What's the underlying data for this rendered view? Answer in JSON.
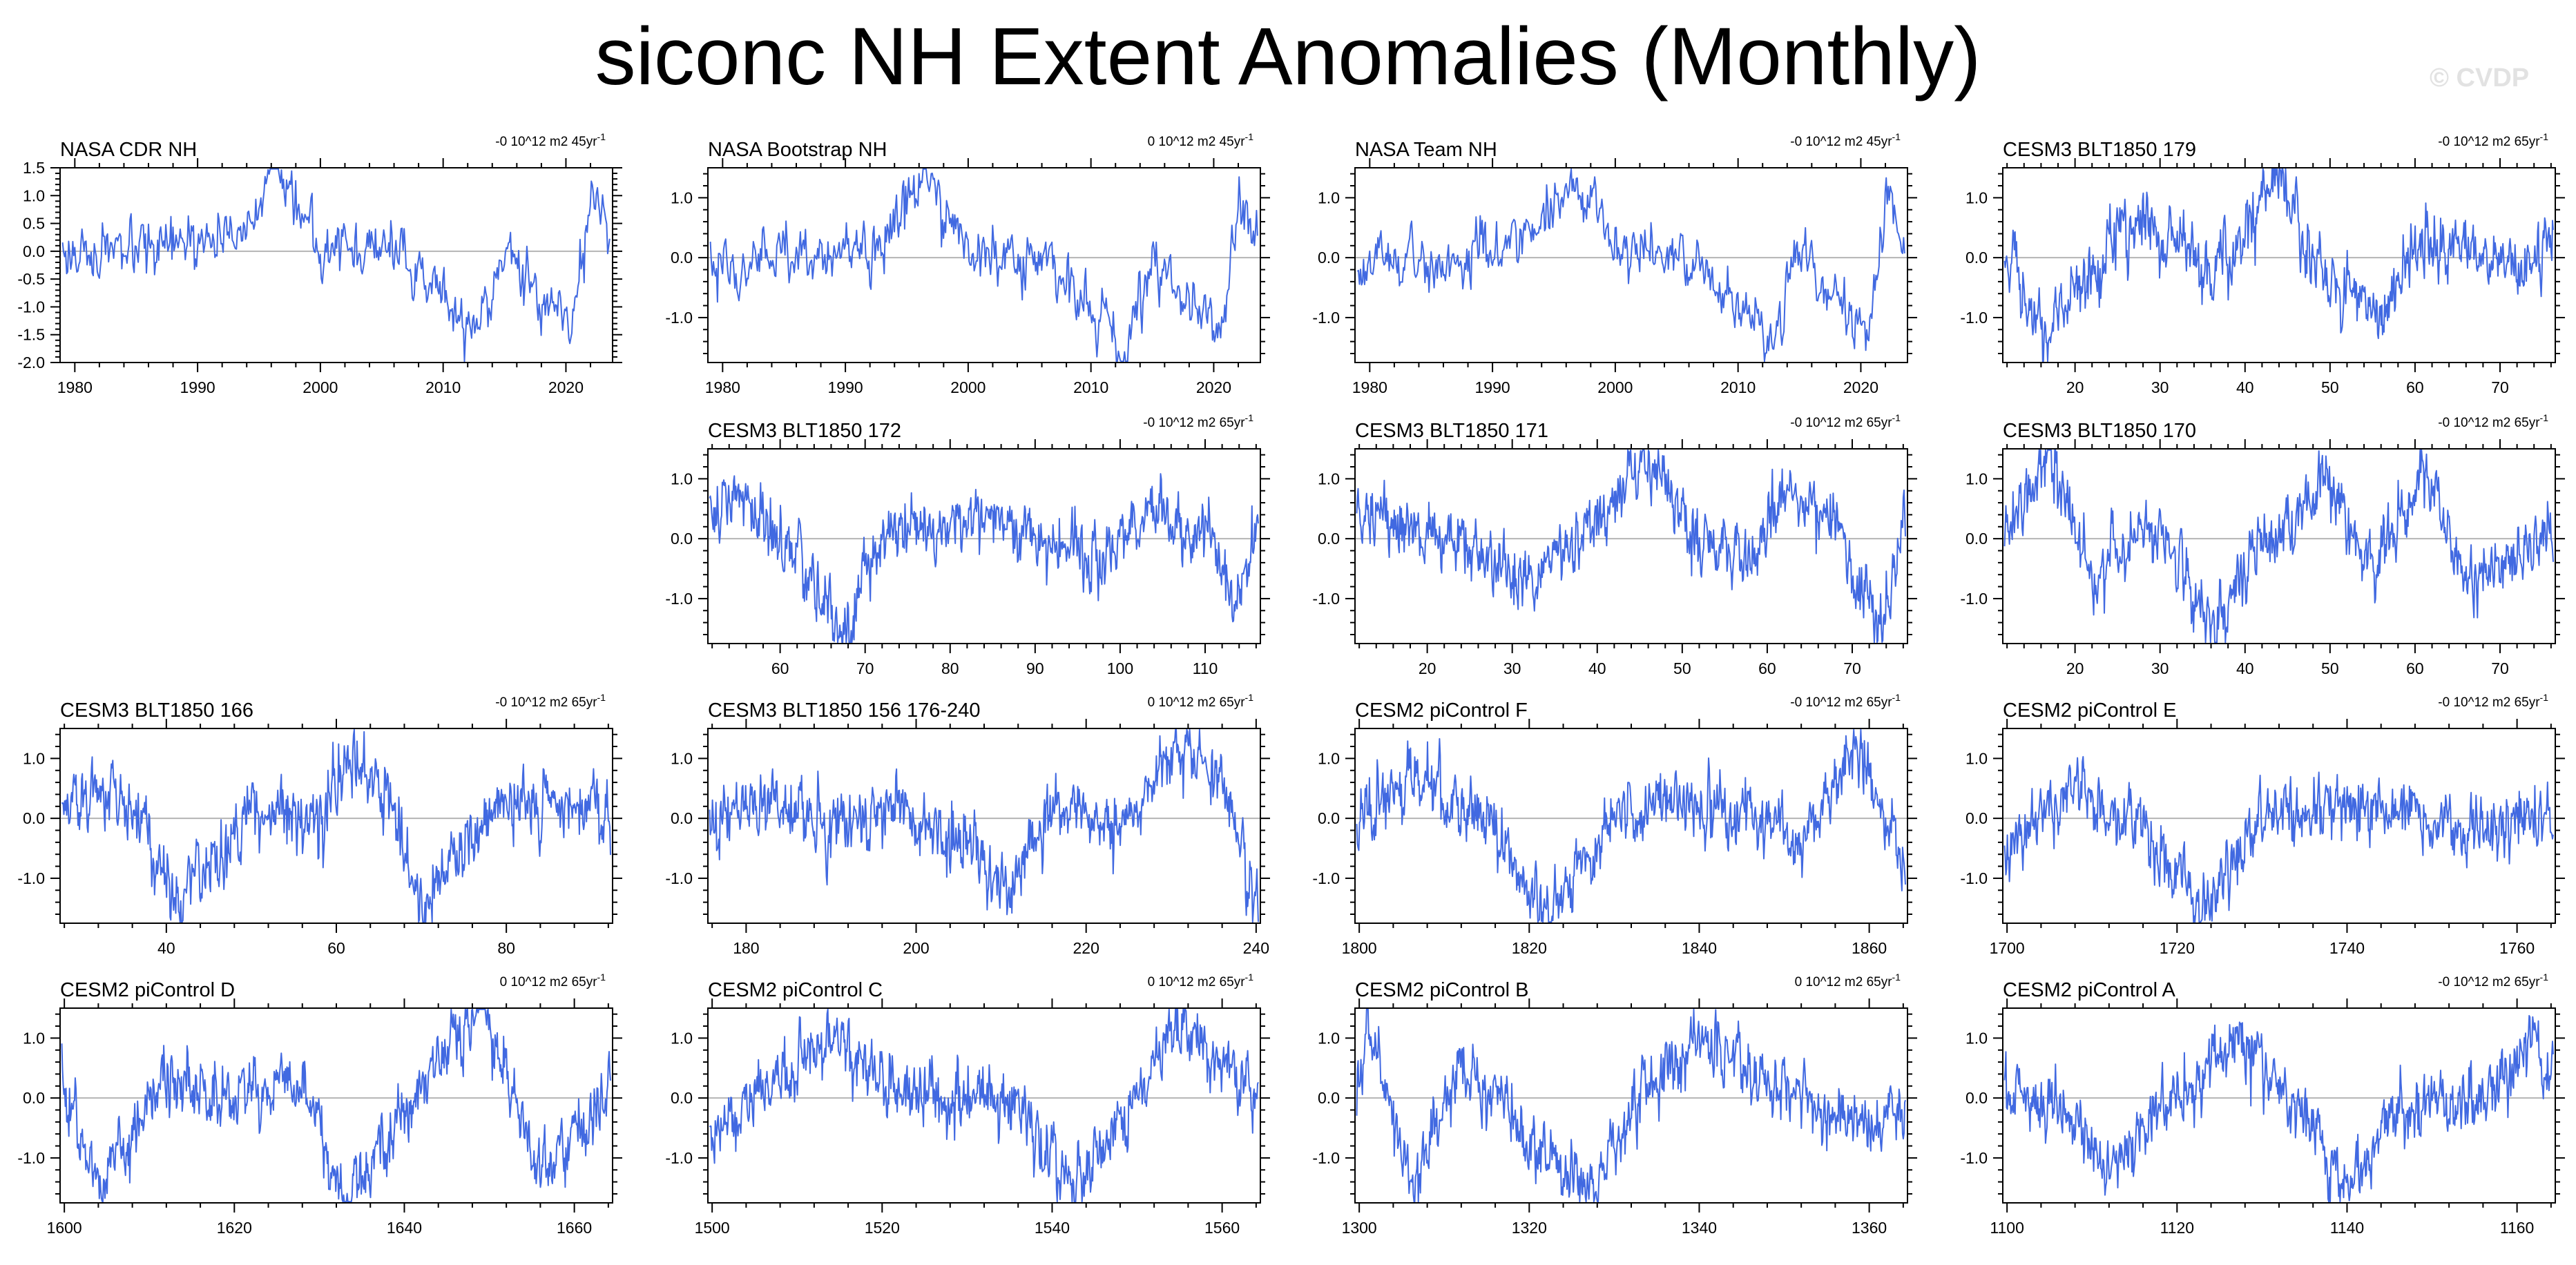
{
  "title": "siconc NH Extent Anomalies (Monthly)",
  "watermark": "© CVDP",
  "colors": {
    "line": "#4169e1",
    "zero": "#b4b4b4",
    "frame": "#000000"
  },
  "chart_data": [
    {
      "type": "line",
      "id": "nasa-cdr",
      "title": "NASA CDR NH",
      "rate": "-0 10^12 m2 45yr",
      "xlim": [
        1978.8,
        2023.8
      ],
      "ylim": [
        -2.0,
        1.5
      ],
      "xticks": [
        1980,
        1990,
        2000,
        2010,
        2020
      ],
      "yticks": [
        -2.0,
        -1.5,
        -1.0,
        -0.5,
        0.0,
        0.5,
        1.0,
        1.5
      ],
      "ytick_labels": [
        "-2.0",
        "-1.5",
        "-1.0",
        "-0.5",
        "0.0",
        "0.5",
        "1.0",
        "1.5"
      ],
      "x_step": 0.0833,
      "smoothing": 0.45,
      "noise_sd": 0.22,
      "anchors": [
        [
          1979,
          0.0
        ],
        [
          1985,
          -0.1
        ],
        [
          1993,
          0.3
        ],
        [
          1996.5,
          1.35
        ],
        [
          2000,
          0.15
        ],
        [
          2007,
          -0.1
        ],
        [
          2012.7,
          -1.55
        ],
        [
          2015,
          0.05
        ],
        [
          2020.5,
          -1.35
        ],
        [
          2022,
          0.9
        ],
        [
          2023.5,
          0.4
        ]
      ]
    },
    {
      "type": "line",
      "id": "nasa-bootstrap",
      "title": "NASA Bootstrap NH",
      "rate": "0 10^12 m2 45yr",
      "xlim": [
        1978.8,
        2023.8
      ],
      "ylim": [
        -1.75,
        1.5
      ],
      "xticks": [
        1980,
        1990,
        2000,
        2010,
        2020
      ],
      "yticks": [
        -1.0,
        0.0,
        1.0
      ],
      "ytick_labels": [
        "-1.0",
        "0.0",
        "1.0"
      ],
      "x_step": 0.0833,
      "smoothing": 0.45,
      "noise_sd": 0.22,
      "anchors": [
        [
          1979,
          0.0
        ],
        [
          1985,
          -0.1
        ],
        [
          1993,
          0.3
        ],
        [
          1996.5,
          1.35
        ],
        [
          2000,
          0.15
        ],
        [
          2007,
          -0.1
        ],
        [
          2012.7,
          -1.55
        ],
        [
          2015,
          0.05
        ],
        [
          2020.5,
          -1.35
        ],
        [
          2022,
          0.9
        ],
        [
          2023.5,
          0.4
        ]
      ]
    },
    {
      "type": "line",
      "id": "nasa-team",
      "title": "NASA Team NH",
      "rate": "-0 10^12 m2 45yr",
      "xlim": [
        1978.8,
        2023.8
      ],
      "ylim": [
        -1.75,
        1.5
      ],
      "xticks": [
        1980,
        1990,
        2000,
        2010,
        2020
      ],
      "yticks": [
        -1.0,
        0.0,
        1.0
      ],
      "ytick_labels": [
        "-1.0",
        "0.0",
        "1.0"
      ],
      "x_step": 0.0833,
      "smoothing": 0.45,
      "noise_sd": 0.22,
      "anchors": [
        [
          1979,
          0.0
        ],
        [
          1985,
          -0.1
        ],
        [
          1993,
          0.3
        ],
        [
          1996.5,
          1.35
        ],
        [
          2000,
          0.15
        ],
        [
          2007,
          -0.1
        ],
        [
          2012.7,
          -1.55
        ],
        [
          2015,
          0.05
        ],
        [
          2020.5,
          -1.35
        ],
        [
          2022,
          0.9
        ],
        [
          2023.5,
          0.4
        ]
      ]
    },
    {
      "type": "line",
      "id": "cesm3-179",
      "title": "CESM3 BLT1850 179",
      "rate": "-0 10^12 m2 65yr",
      "xlim": [
        11.5,
        76.5
      ],
      "ylim": [
        -1.75,
        1.5
      ],
      "xticks": [
        20,
        30,
        40,
        50,
        60,
        70
      ],
      "yticks": [
        -1.0,
        0.0,
        1.0
      ],
      "ytick_labels": [
        "-1.0",
        "0.0",
        "1.0"
      ],
      "x_step": 0.0833,
      "smoothing": 0.45,
      "noise_sd": 0.25,
      "anchors": [
        [
          12,
          0.1
        ],
        [
          16,
          -1.4
        ],
        [
          24,
          0.3
        ],
        [
          30,
          0.5
        ],
        [
          36,
          -0.3
        ],
        [
          44,
          1.2
        ],
        [
          50,
          -0.5
        ],
        [
          56,
          -1.1
        ],
        [
          60,
          0.3
        ],
        [
          66,
          0.2
        ],
        [
          72,
          -0.2
        ],
        [
          76,
          0.2
        ]
      ]
    },
    {
      "type": "line",
      "id": "cesm3-172",
      "title": "CESM3 BLT1850 172",
      "rate": "-0 10^12 m2 65yr",
      "xlim": [
        51.5,
        116.5
      ],
      "ylim": [
        -1.75,
        1.5
      ],
      "xticks": [
        60,
        70,
        80,
        90,
        100,
        110
      ],
      "yticks": [
        -1.0,
        0.0,
        1.0
      ],
      "ytick_labels": [
        "-1.0",
        "0.0",
        "1.0"
      ],
      "x_step": 0.0833,
      "smoothing": 0.45,
      "noise_sd": 0.25,
      "anchors": [
        [
          52,
          0.4
        ],
        [
          55,
          0.6
        ],
        [
          62,
          -0.3
        ],
        [
          67.5,
          -1.6
        ],
        [
          72,
          0.0
        ],
        [
          80,
          0.3
        ],
        [
          88,
          0.2
        ],
        [
          96,
          -0.3
        ],
        [
          104,
          0.4
        ],
        [
          110,
          0.2
        ],
        [
          114,
          -1.0
        ],
        [
          116,
          0.3
        ]
      ]
    },
    {
      "type": "line",
      "id": "cesm3-171",
      "title": "CESM3 BLT1850 171",
      "rate": "-0 10^12 m2 65yr",
      "xlim": [
        11.5,
        76.5
      ],
      "ylim": [
        -1.75,
        1.5
      ],
      "xticks": [
        20,
        30,
        40,
        50,
        60,
        70
      ],
      "yticks": [
        -1.0,
        0.0,
        1.0
      ],
      "ytick_labels": [
        "-1.0",
        "0.0",
        "1.0"
      ],
      "x_step": 0.0833,
      "smoothing": 0.45,
      "noise_sd": 0.25,
      "anchors": [
        [
          12,
          0.4
        ],
        [
          18,
          0.1
        ],
        [
          24,
          0.0
        ],
        [
          32,
          -0.8
        ],
        [
          40,
          0.3
        ],
        [
          46,
          1.2
        ],
        [
          52,
          0.0
        ],
        [
          58,
          -0.4
        ],
        [
          62,
          0.7
        ],
        [
          68,
          0.4
        ],
        [
          73.5,
          -1.7
        ],
        [
          76,
          0.2
        ]
      ]
    },
    {
      "type": "line",
      "id": "cesm3-170",
      "title": "CESM3 BLT1850 170",
      "rate": "-0 10^12 m2 65yr",
      "xlim": [
        11.5,
        76.5
      ],
      "ylim": [
        -1.75,
        1.5
      ],
      "xticks": [
        20,
        30,
        40,
        50,
        60,
        70
      ],
      "yticks": [
        -1.0,
        0.0,
        1.0
      ],
      "ytick_labels": [
        "-1.0",
        "0.0",
        "1.0"
      ],
      "x_step": 0.0833,
      "smoothing": 0.45,
      "noise_sd": 0.25,
      "anchors": [
        [
          12,
          0.1
        ],
        [
          17,
          1.4
        ],
        [
          22,
          -0.6
        ],
        [
          30,
          0.3
        ],
        [
          36.5,
          -1.5
        ],
        [
          40,
          -0.4
        ],
        [
          50,
          1.0
        ],
        [
          55,
          -0.6
        ],
        [
          61,
          1.2
        ],
        [
          66,
          -0.7
        ],
        [
          72,
          -0.3
        ],
        [
          76,
          0.2
        ]
      ]
    },
    {
      "type": "line",
      "id": "cesm3-166",
      "title": "CESM3 BLT1850 166",
      "rate": "-0 10^12 m2 65yr",
      "xlim": [
        27.5,
        92.5
      ],
      "ylim": [
        -1.75,
        1.5
      ],
      "xticks": [
        40,
        60,
        80
      ],
      "yticks": [
        -1.0,
        0.0,
        1.0
      ],
      "ytick_labels": [
        "-1.0",
        "0.0",
        "1.0"
      ],
      "x_step": 0.0833,
      "smoothing": 0.45,
      "noise_sd": 0.25,
      "anchors": [
        [
          28,
          0.2
        ],
        [
          34,
          0.5
        ],
        [
          42,
          -1.4
        ],
        [
          50,
          0.1
        ],
        [
          58,
          0.0
        ],
        [
          62,
          1.1
        ],
        [
          66,
          0.4
        ],
        [
          70,
          -1.5
        ],
        [
          78,
          0.1
        ],
        [
          86,
          0.3
        ],
        [
          92,
          -0.1
        ]
      ]
    },
    {
      "type": "line",
      "id": "cesm3-156",
      "title": "CESM3 BLT1850 156 176-240",
      "rate": "0 10^12 m2 65yr",
      "xlim": [
        175.5,
        240.5
      ],
      "ylim": [
        -1.75,
        1.5
      ],
      "xticks": [
        180,
        200,
        220,
        240
      ],
      "yticks": [
        -1.0,
        0.0,
        1.0
      ],
      "ytick_labels": [
        "-1.0",
        "0.0",
        "1.0"
      ],
      "x_step": 0.0833,
      "smoothing": 0.45,
      "noise_sd": 0.25,
      "anchors": [
        [
          176,
          0.0
        ],
        [
          182,
          0.3
        ],
        [
          190,
          -0.2
        ],
        [
          198,
          0.2
        ],
        [
          206,
          -0.4
        ],
        [
          210,
          -1.3
        ],
        [
          216,
          0.1
        ],
        [
          224,
          0.0
        ],
        [
          232,
          1.3
        ],
        [
          236,
          0.6
        ],
        [
          240,
          -1.4
        ]
      ]
    },
    {
      "type": "line",
      "id": "cesm2-f",
      "title": "CESM2 piControl F",
      "rate": "-0 10^12 m2 65yr",
      "xlim": [
        1799.5,
        1864.5
      ],
      "ylim": [
        -1.75,
        1.5
      ],
      "xticks": [
        1800,
        1820,
        1840,
        1860
      ],
      "yticks": [
        -1.0,
        0.0,
        1.0
      ],
      "ytick_labels": [
        "-1.0",
        "0.0",
        "1.0"
      ],
      "x_step": 0.0833,
      "smoothing": 0.45,
      "noise_sd": 0.25,
      "anchors": [
        [
          1800,
          0.0
        ],
        [
          1808,
          0.6
        ],
        [
          1816,
          -0.2
        ],
        [
          1822.5,
          -1.6
        ],
        [
          1830,
          0.0
        ],
        [
          1838,
          0.3
        ],
        [
          1846,
          0.0
        ],
        [
          1852,
          -0.3
        ],
        [
          1859,
          1.1
        ],
        [
          1864,
          -0.6
        ]
      ]
    },
    {
      "type": "line",
      "id": "cesm2-e",
      "title": "CESM2 piControl E",
      "rate": "-0 10^12 m2 65yr",
      "xlim": [
        1699.5,
        1764.5
      ],
      "ylim": [
        -1.75,
        1.5
      ],
      "xticks": [
        1700,
        1720,
        1740,
        1760
      ],
      "yticks": [
        -1.0,
        0.0,
        1.0
      ],
      "ytick_labels": [
        "-1.0",
        "0.0",
        "1.0"
      ],
      "x_step": 0.0833,
      "smoothing": 0.45,
      "noise_sd": 0.25,
      "anchors": [
        [
          1700,
          -0.4
        ],
        [
          1708,
          0.4
        ],
        [
          1716,
          -0.2
        ],
        [
          1723,
          -1.5
        ],
        [
          1730,
          0.0
        ],
        [
          1738,
          0.2
        ],
        [
          1746,
          0.3
        ],
        [
          1754,
          -0.3
        ],
        [
          1760,
          0.1
        ],
        [
          1764,
          -0.2
        ]
      ]
    },
    {
      "type": "line",
      "id": "cesm2-d",
      "title": "CESM2 piControl D",
      "rate": "0 10^12 m2 65yr",
      "xlim": [
        1599.5,
        1664.5
      ],
      "ylim": [
        -1.75,
        1.5
      ],
      "xticks": [
        1600,
        1620,
        1640,
        1660
      ],
      "yticks": [
        -1.0,
        0.0,
        1.0
      ],
      "ytick_labels": [
        "-1.0",
        "0.0",
        "1.0"
      ],
      "x_step": 0.0833,
      "smoothing": 0.45,
      "noise_sd": 0.25,
      "anchors": [
        [
          1600,
          0.1
        ],
        [
          1604,
          -1.5
        ],
        [
          1612,
          0.3
        ],
        [
          1620,
          0.0
        ],
        [
          1628,
          0.2
        ],
        [
          1633,
          -1.6
        ],
        [
          1640,
          -0.2
        ],
        [
          1649,
          1.6
        ],
        [
          1656,
          -1.3
        ],
        [
          1664,
          0.1
        ]
      ]
    },
    {
      "type": "line",
      "id": "cesm2-c",
      "title": "CESM2 piControl C",
      "rate": "0 10^12 m2 65yr",
      "xlim": [
        1499.5,
        1564.5
      ],
      "ylim": [
        -1.75,
        1.5
      ],
      "xticks": [
        1500,
        1520,
        1540,
        1560
      ],
      "yticks": [
        -1.0,
        0.0,
        1.0
      ],
      "ytick_labels": [
        "-1.0",
        "0.0",
        "1.0"
      ],
      "x_step": 0.0833,
      "smoothing": 0.45,
      "noise_sd": 0.25,
      "anchors": [
        [
          1500,
          -0.6
        ],
        [
          1506,
          0.1
        ],
        [
          1514,
          1.0
        ],
        [
          1520,
          0.3
        ],
        [
          1528,
          0.0
        ],
        [
          1536,
          -0.1
        ],
        [
          1542,
          -1.4
        ],
        [
          1550,
          0.0
        ],
        [
          1555,
          1.3
        ],
        [
          1564,
          0.1
        ]
      ]
    },
    {
      "type": "line",
      "id": "cesm2-b",
      "title": "CESM2 piControl B",
      "rate": "0 10^12 m2 65yr",
      "xlim": [
        1299.5,
        1364.5
      ],
      "ylim": [
        -1.75,
        1.5
      ],
      "xticks": [
        1300,
        1320,
        1340,
        1360
      ],
      "yticks": [
        -1.0,
        0.0,
        1.0
      ],
      "ytick_labels": [
        "-1.0",
        "0.0",
        "1.0"
      ],
      "x_step": 0.0833,
      "smoothing": 0.45,
      "noise_sd": 0.25,
      "anchors": [
        [
          1300,
          0.2
        ],
        [
          1301,
          1.3
        ],
        [
          1306,
          -1.5
        ],
        [
          1312,
          0.6
        ],
        [
          1320,
          -0.8
        ],
        [
          1327,
          -1.6
        ],
        [
          1334,
          0.0
        ],
        [
          1340,
          1.1
        ],
        [
          1348,
          0.2
        ],
        [
          1356,
          -0.3
        ],
        [
          1364,
          -0.3
        ]
      ]
    },
    {
      "type": "line",
      "id": "cesm2-a",
      "title": "CESM2 piControl A",
      "rate": "-0 10^12 m2 65yr",
      "xlim": [
        1099.5,
        1164.5
      ],
      "ylim": [
        -1.75,
        1.5
      ],
      "xticks": [
        1100,
        1120,
        1140,
        1160
      ],
      "yticks": [
        -1.0,
        0.0,
        1.0
      ],
      "ytick_labels": [
        "-1.0",
        "0.0",
        "1.0"
      ],
      "x_step": 0.0833,
      "smoothing": 0.45,
      "noise_sd": 0.25,
      "anchors": [
        [
          1100,
          0.2
        ],
        [
          1106,
          -0.3
        ],
        [
          1112,
          -1.2
        ],
        [
          1120,
          0.0
        ],
        [
          1128,
          0.9
        ],
        [
          1136,
          -0.4
        ],
        [
          1140,
          -1.5
        ],
        [
          1148,
          0.1
        ],
        [
          1156,
          -0.1
        ],
        [
          1162,
          1.0
        ],
        [
          1164,
          0.2
        ]
      ]
    }
  ]
}
